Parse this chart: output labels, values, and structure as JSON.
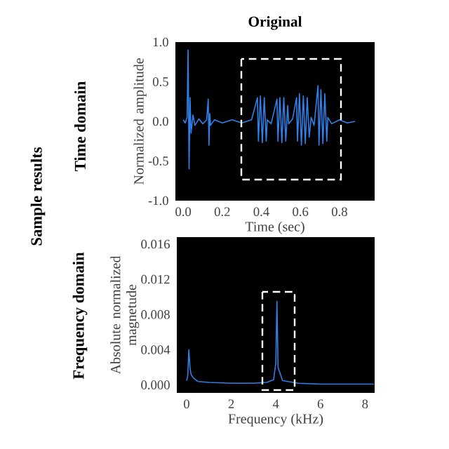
{
  "chart_data": [
    {
      "type": "line",
      "title": "Original",
      "xlabel": "Time (sec)",
      "ylabel": "Normalized amplitude",
      "annotations": [
        "Sample results",
        "Time domain"
      ],
      "series": [
        {
          "color": "#2f80e8",
          "x": [
            0.0,
            0.01,
            0.02,
            0.025,
            0.03,
            0.035,
            0.04,
            0.05,
            0.06,
            0.08,
            0.1,
            0.12,
            0.128,
            0.132,
            0.136,
            0.14,
            0.16,
            0.2,
            0.25,
            0.3,
            0.35,
            0.38,
            0.385,
            0.395,
            0.405,
            0.415,
            0.425,
            0.43,
            0.45,
            0.48,
            0.485,
            0.495,
            0.505,
            0.515,
            0.525,
            0.535,
            0.54,
            0.56,
            0.58,
            0.585,
            0.595,
            0.605,
            0.615,
            0.625,
            0.635,
            0.645,
            0.655,
            0.67,
            0.69,
            0.695,
            0.705,
            0.715,
            0.725,
            0.735,
            0.74,
            0.76,
            0.8,
            0.84,
            0.88
          ],
          "values": [
            0.02,
            -0.02,
            0.05,
            0.9,
            -0.6,
            0.3,
            -0.15,
            0.08,
            -0.05,
            0.03,
            -0.03,
            0.02,
            0.28,
            -0.3,
            0.1,
            -0.05,
            0.02,
            -0.02,
            0.02,
            -0.02,
            0.02,
            0.3,
            -0.25,
            0.32,
            -0.27,
            0.3,
            -0.25,
            0.02,
            -0.03,
            0.28,
            -0.25,
            0.3,
            -0.27,
            0.3,
            -0.25,
            0.2,
            -0.03,
            0.03,
            0.3,
            -0.25,
            0.35,
            -0.3,
            0.32,
            -0.28,
            0.3,
            -0.2,
            0.05,
            -0.05,
            0.45,
            -0.3,
            0.4,
            -0.28,
            0.35,
            -0.25,
            0.05,
            -0.03,
            0.02,
            -0.02,
            0.0
          ]
        }
      ],
      "xlim": [
        -0.04,
        0.98
      ],
      "ylim": [
        -1,
        1
      ],
      "xticks": [
        {
          "value": 0,
          "label": "0.0"
        },
        {
          "value": 0.2,
          "label": "0.2"
        },
        {
          "value": 0.4,
          "label": "0.4"
        },
        {
          "value": 0.6,
          "label": "0.6"
        },
        {
          "value": 0.8,
          "label": "0.8"
        }
      ],
      "yticks": [
        {
          "value": 1,
          "label": "1.0"
        },
        {
          "value": 0.5,
          "label": "0.5"
        },
        {
          "value": 0,
          "label": "0.0"
        },
        {
          "value": -0.5,
          "label": "-0.5"
        },
        {
          "value": -1,
          "label": "-1.0"
        }
      ]
    },
    {
      "type": "line",
      "xlabel": "Frequency (kHz)",
      "ylabel": "Absolute normalized magnetude",
      "annotations": [
        "Frequency domain"
      ],
      "series": [
        {
          "color": "#2f80e8",
          "x": [
            0,
            0.05,
            0.1,
            0.15,
            0.2,
            0.3,
            0.5,
            1,
            2,
            3,
            3.6,
            3.9,
            4.0,
            4.05,
            4.1,
            4.3,
            5,
            6,
            7,
            8.4
          ],
          "values": [
            0.0005,
            0.001,
            0.004,
            0.002,
            0.0012,
            0.0008,
            0.0004,
            0.0003,
            0.0002,
            0.0002,
            0.0003,
            0.0006,
            0.0025,
            0.0095,
            0.002,
            0.0005,
            0.0002,
            0.0001,
            0.0001,
            0.0001
          ]
        }
      ],
      "xlim": [
        -0.44,
        8.43
      ],
      "ylim": [
        -0.0009,
        0.0168
      ],
      "xticks": [
        0,
        2,
        4,
        6,
        8
      ],
      "yticks": [
        {
          "value": 0,
          "label": "0.000"
        },
        {
          "value": 0.004,
          "label": "0.004"
        },
        {
          "value": 0.008,
          "label": "0.008"
        },
        {
          "value": 0.012,
          "label": "0.012"
        },
        {
          "value": 0.016,
          "label": "0.016"
        }
      ]
    }
  ]
}
